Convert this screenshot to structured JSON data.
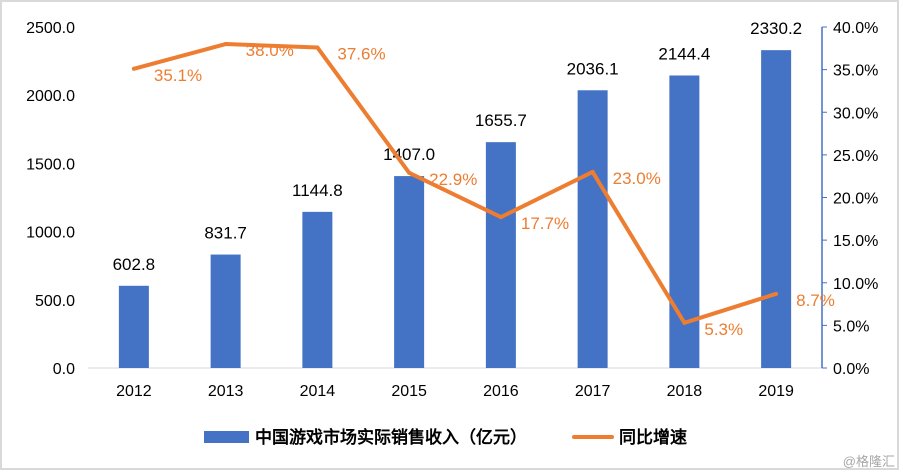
{
  "chart_data": {
    "type": "bar+line",
    "categories": [
      "2012",
      "2013",
      "2014",
      "2015",
      "2016",
      "2017",
      "2018",
      "2019"
    ],
    "series": [
      {
        "name": "中国游戏市场实际销售收入（亿元）",
        "type": "bar",
        "axis": "left",
        "color": "#4472C4",
        "values": [
          602.8,
          831.7,
          1144.8,
          1407.0,
          1655.7,
          2036.1,
          2144.4,
          2330.2
        ],
        "labels": [
          "602.8",
          "831.7",
          "1144.8",
          "1407.0",
          "1655.7",
          "2036.1",
          "2144.4",
          "2330.2"
        ]
      },
      {
        "name": "同比增速",
        "type": "line",
        "axis": "right",
        "color": "#ED7D31",
        "values": [
          35.1,
          38.0,
          37.6,
          22.9,
          17.7,
          23.0,
          5.3,
          8.7
        ],
        "labels": [
          "35.1%",
          "38.0%",
          "37.6%",
          "22.9%",
          "17.7%",
          "23.0%",
          "5.3%",
          "8.7%"
        ]
      }
    ],
    "left_axis": {
      "ylim": [
        0,
        2500
      ],
      "ticks": [
        "0.0",
        "500.0",
        "1000.0",
        "1500.0",
        "2000.0",
        "2500.0"
      ]
    },
    "right_axis": {
      "ylim": [
        0,
        40
      ],
      "ticks": [
        "0.0%",
        "5.0%",
        "10.0%",
        "15.0%",
        "20.0%",
        "25.0%",
        "30.0%",
        "35.0%",
        "40.0%"
      ],
      "color": "#4472C4"
    },
    "grid": false,
    "legend": "bottom"
  },
  "watermark": "@格隆汇"
}
